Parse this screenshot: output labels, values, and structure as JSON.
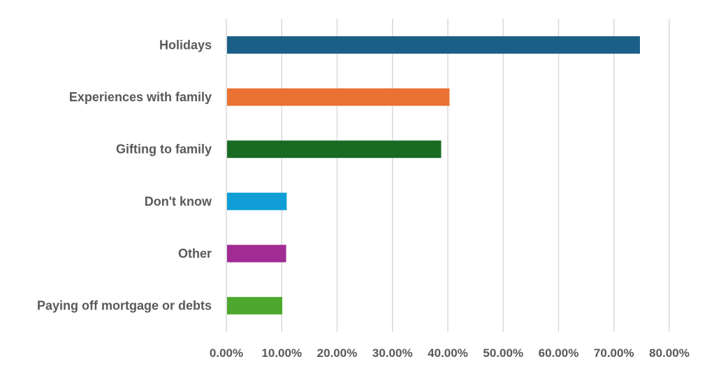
{
  "chart_data": {
    "type": "bar",
    "orientation": "horizontal",
    "categories": [
      "Holidays",
      "Experiences with family",
      "Gifting to family",
      "Don't know",
      "Other",
      "Paying off mortgage or debts"
    ],
    "values": [
      74.7,
      40.3,
      38.8,
      10.9,
      10.8,
      10.1
    ],
    "colors": [
      "#1a5f86",
      "#e97132",
      "#196b24",
      "#0f9ed5",
      "#a02b93",
      "#4ea72e"
    ],
    "x_ticks": [
      "0.00%",
      "10.00%",
      "20.00%",
      "30.00%",
      "40.00%",
      "50.00%",
      "60.00%",
      "70.00%",
      "80.00%"
    ],
    "xlim": [
      0,
      80
    ],
    "grid": true,
    "title": "",
    "xlabel": "",
    "ylabel": ""
  }
}
